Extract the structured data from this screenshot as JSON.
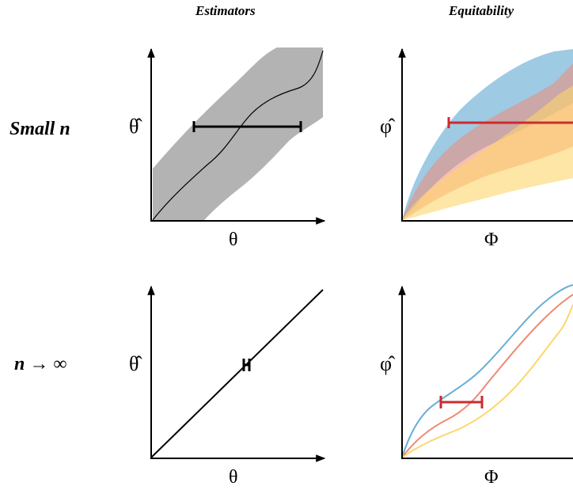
{
  "columns": {
    "left": "Estimators",
    "right": "Equitability"
  },
  "rows": {
    "top": "Small n",
    "bottom_var": "n",
    "bottom_arrow": "→",
    "bottom_limit": "∞"
  },
  "axes": {
    "theta_hat": "θ̂",
    "theta": "θ",
    "phi_hat": "φ̂",
    "phi": "Φ"
  },
  "colors": {
    "gray_band": "#b3b3b3",
    "blue": "#6aaed6",
    "salmon": "#f08a74",
    "yellow": "#fcd66a",
    "red_bar": "#cc2b30",
    "black": "#000000"
  }
}
